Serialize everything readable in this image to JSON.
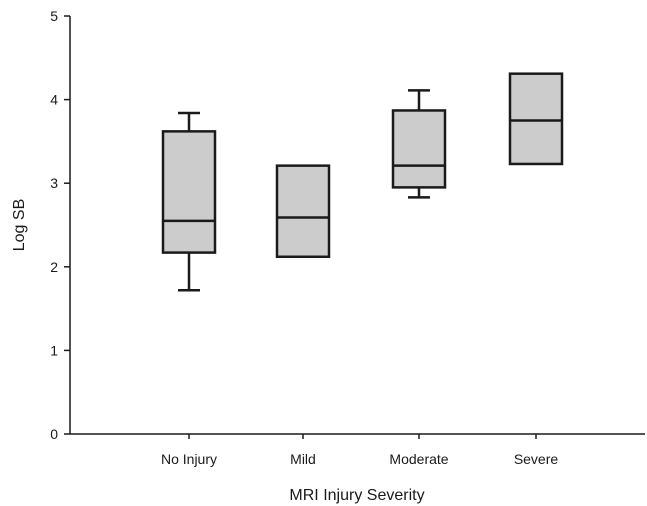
{
  "chart_data": {
    "type": "box",
    "title": "",
    "xlabel": "MRI Injury Severity",
    "ylabel": "Log SB",
    "ylim": [
      0,
      5
    ],
    "yticks": [
      0,
      1,
      2,
      3,
      4,
      5
    ],
    "grid": false,
    "legend": "none",
    "colors": {
      "box_fill": "#cccccc",
      "stroke": "#1a1a1a"
    },
    "categories": [
      "No Injury",
      "Mild",
      "Moderate",
      "Severe"
    ],
    "boxes": [
      {
        "category": "No Injury",
        "whisker_low": 1.72,
        "q1": 2.17,
        "median": 2.55,
        "q3": 3.62,
        "whisker_high": 3.84
      },
      {
        "category": "Mild",
        "whisker_low": 2.12,
        "q1": 2.12,
        "median": 2.59,
        "q3": 3.21,
        "whisker_high": 3.21
      },
      {
        "category": "Moderate",
        "whisker_low": 2.83,
        "q1": 2.95,
        "median": 3.21,
        "q3": 3.87,
        "whisker_high": 4.11
      },
      {
        "category": "Severe",
        "whisker_low": 3.23,
        "q1": 3.23,
        "median": 3.75,
        "q3": 4.31,
        "whisker_high": 4.31
      }
    ]
  }
}
